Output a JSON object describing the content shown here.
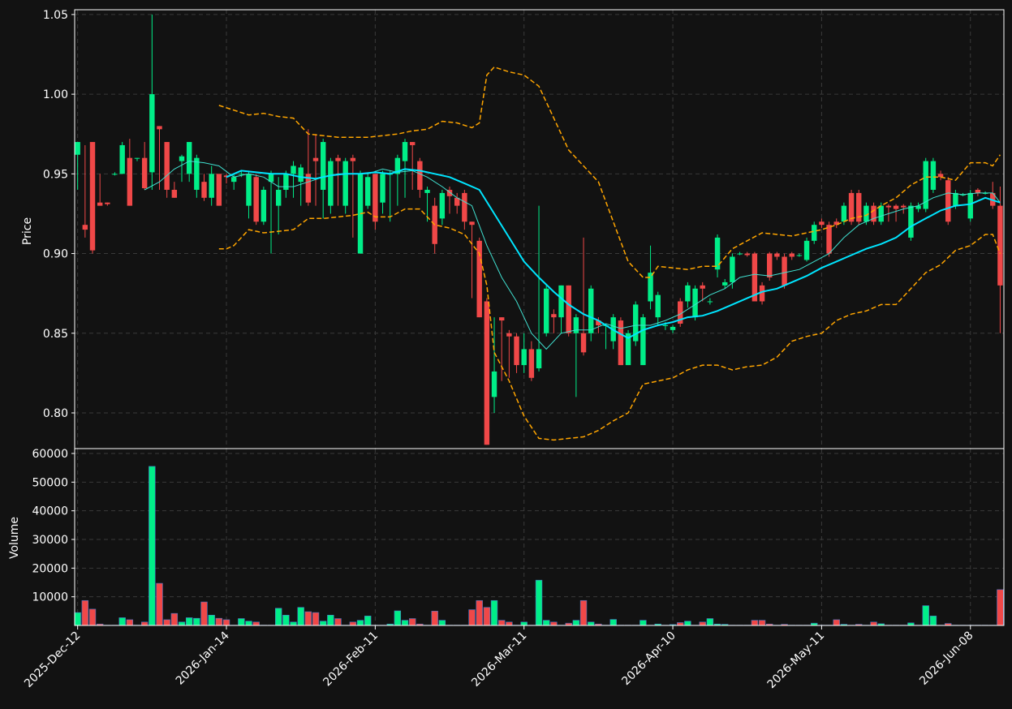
{
  "chart_data": [
    {
      "type": "candlestick",
      "ylabel": "Price",
      "up_color": "#00ee88",
      "down_color": "#f04848",
      "grid": true,
      "xlim": [
        -0.4,
        124.5
      ],
      "ylim": [
        0.7776,
        1.053
      ],
      "yticks": [
        {
          "value": 0.8,
          "label": "0.80"
        },
        0.85,
        {
          "value": 0.9,
          "label": "0.90"
        },
        0.95,
        {
          "value": 1,
          "label": "1.00"
        },
        1.05
      ],
      "open": [
        0.962,
        0.918,
        0.97,
        0.932,
        0.932,
        0.95,
        0.95,
        0.96,
        0.96,
        0.96,
        0.951,
        0.98,
        0.97,
        0.94,
        0.958,
        0.95,
        0.94,
        0.945,
        0.935,
        0.95,
        0.949,
        0.945,
        0.95,
        0.93,
        0.948,
        0.92,
        0.945,
        0.93,
        0.94,
        0.95,
        0.945,
        0.95,
        0.96,
        0.94,
        0.93,
        0.96,
        0.93,
        0.96,
        0.9,
        0.93,
        0.95,
        0.932,
        0.95,
        0.95,
        0.958,
        0.97,
        0.958,
        0.938,
        0.93,
        0.922,
        0.94,
        0.935,
        0.938,
        0.92,
        0.908,
        0.87,
        0.81,
        0.86,
        0.85,
        0.848,
        0.83,
        0.84,
        0.828,
        0.85,
        0.862,
        0.86,
        0.88,
        0.85,
        0.85,
        0.85,
        0.858,
        0.855,
        0.845,
        0.858,
        0.83,
        0.845,
        0.83,
        0.87,
        0.86,
        0.855,
        0.852,
        0.87,
        0.87,
        0.86,
        0.88,
        0.87,
        0.89,
        0.88,
        0.882,
        0.9,
        0.9,
        0.9,
        0.88,
        0.9,
        0.9,
        0.898,
        0.9,
        0.899,
        0.896,
        0.908,
        0.92,
        0.918,
        0.92,
        0.92,
        0.938,
        0.938,
        0.92,
        0.93,
        0.92,
        0.93,
        0.93,
        0.93,
        0.91,
        0.928,
        0.928,
        0.94,
        0.95,
        0.946,
        0.93,
        0.937,
        0.922,
        0.94,
        0.938,
        0.938,
        0.93
      ],
      "close": [
        0.97,
        0.915,
        0.902,
        0.93,
        0.931,
        0.95,
        0.968,
        0.93,
        0.96,
        0.941,
        1.0,
        0.978,
        0.94,
        0.935,
        0.961,
        0.97,
        0.96,
        0.935,
        0.95,
        0.93,
        0.948,
        0.948,
        0.95,
        0.95,
        0.92,
        0.94,
        0.95,
        0.94,
        0.95,
        0.955,
        0.954,
        0.932,
        0.958,
        0.97,
        0.958,
        0.958,
        0.958,
        0.958,
        0.95,
        0.948,
        0.92,
        0.95,
        0.95,
        0.96,
        0.97,
        0.968,
        0.94,
        0.94,
        0.906,
        0.938,
        0.936,
        0.93,
        0.92,
        0.918,
        0.86,
        0.78,
        0.826,
        0.858,
        0.848,
        0.83,
        0.84,
        0.822,
        0.84,
        0.878,
        0.86,
        0.88,
        0.85,
        0.86,
        0.838,
        0.878,
        0.855,
        0.855,
        0.86,
        0.83,
        0.85,
        0.868,
        0.86,
        0.888,
        0.874,
        0.855,
        0.854,
        0.856,
        0.88,
        0.878,
        0.878,
        0.87,
        0.91,
        0.882,
        0.898,
        0.9,
        0.899,
        0.87,
        0.87,
        0.885,
        0.898,
        0.88,
        0.898,
        0.899,
        0.908,
        0.918,
        0.918,
        0.9,
        0.918,
        0.93,
        0.92,
        0.92,
        0.93,
        0.92,
        0.93,
        0.929,
        0.928,
        0.929,
        0.93,
        0.93,
        0.958,
        0.958,
        0.948,
        0.92,
        0.938,
        0.937,
        0.938,
        0.938,
        0.938,
        0.93,
        0.88
      ],
      "high": [
        0.97,
        0.968,
        0.97,
        0.95,
        0.932,
        0.951,
        0.97,
        0.972,
        0.96,
        0.97,
        1.05,
        0.98,
        0.97,
        0.945,
        0.962,
        0.97,
        0.962,
        0.95,
        0.955,
        0.95,
        0.95,
        0.95,
        0.952,
        0.952,
        0.95,
        0.942,
        0.952,
        0.948,
        0.952,
        0.958,
        0.956,
        0.978,
        0.975,
        0.972,
        0.96,
        0.962,
        0.96,
        0.962,
        0.952,
        0.95,
        0.95,
        0.952,
        0.952,
        0.962,
        0.972,
        0.97,
        0.96,
        0.942,
        0.935,
        0.94,
        0.942,
        0.938,
        0.94,
        0.92,
        0.91,
        0.872,
        0.86,
        0.86,
        0.852,
        0.85,
        0.85,
        0.845,
        0.93,
        0.88,
        0.865,
        0.88,
        0.88,
        0.862,
        0.91,
        0.88,
        0.86,
        0.856,
        0.862,
        0.86,
        0.852,
        0.87,
        0.862,
        0.905,
        0.876,
        0.857,
        0.855,
        0.872,
        0.882,
        0.88,
        0.882,
        0.872,
        0.912,
        0.884,
        0.9,
        0.901,
        0.901,
        0.901,
        0.882,
        0.901,
        0.901,
        0.9,
        0.901,
        0.9,
        0.91,
        0.92,
        0.922,
        0.92,
        0.922,
        0.932,
        0.94,
        0.94,
        0.932,
        0.932,
        0.932,
        0.931,
        0.931,
        0.931,
        0.932,
        0.932,
        0.96,
        0.96,
        0.952,
        0.948,
        0.94,
        0.938,
        0.94,
        0.941,
        0.939,
        0.945,
        0.942
      ],
      "low": [
        0.94,
        0.91,
        0.9,
        0.93,
        0.93,
        0.949,
        0.95,
        0.93,
        0.958,
        0.94,
        0.94,
        0.94,
        0.935,
        0.935,
        0.945,
        0.945,
        0.935,
        0.933,
        0.93,
        0.93,
        0.944,
        0.94,
        0.948,
        0.922,
        0.918,
        0.918,
        0.9,
        0.912,
        0.935,
        0.935,
        0.93,
        0.93,
        0.93,
        0.922,
        0.925,
        0.93,
        0.925,
        0.91,
        0.9,
        0.928,
        0.915,
        0.925,
        0.92,
        0.93,
        0.935,
        0.94,
        0.935,
        0.92,
        0.9,
        0.918,
        0.925,
        0.925,
        0.915,
        0.872,
        0.86,
        0.78,
        0.8,
        0.82,
        0.822,
        0.825,
        0.825,
        0.82,
        0.826,
        0.848,
        0.85,
        0.85,
        0.848,
        0.81,
        0.836,
        0.845,
        0.85,
        0.84,
        0.84,
        0.83,
        0.83,
        0.842,
        0.83,
        0.865,
        0.855,
        0.852,
        0.85,
        0.854,
        0.866,
        0.858,
        0.87,
        0.868,
        0.885,
        0.878,
        0.878,
        0.899,
        0.898,
        0.87,
        0.868,
        0.883,
        0.896,
        0.878,
        0.896,
        0.898,
        0.895,
        0.906,
        0.916,
        0.898,
        0.916,
        0.918,
        0.918,
        0.918,
        0.918,
        0.918,
        0.918,
        0.92,
        0.92,
        0.925,
        0.908,
        0.926,
        0.926,
        0.938,
        0.946,
        0.918,
        0.928,
        0.936,
        0.92,
        0.936,
        0.937,
        0.928,
        0.85
      ],
      "lines": [
        {
          "color": "#40e0d0",
          "width": 1,
          "dashed": false,
          "x": [
            9,
            11,
            13,
            15,
            17,
            19,
            21,
            23,
            25,
            27,
            29,
            31,
            33,
            35,
            37,
            39,
            41,
            43,
            45,
            47,
            49,
            51,
            53,
            55,
            57,
            59,
            61,
            63,
            65,
            67,
            69,
            71,
            73,
            75,
            77,
            79,
            81,
            83,
            85,
            87,
            89,
            91,
            93,
            95,
            97,
            99,
            101,
            103,
            105,
            107,
            109,
            111,
            113,
            115,
            117,
            119,
            121,
            123,
            124
          ],
          "values": [
            0.94,
            0.945,
            0.953,
            0.958,
            0.957,
            0.955,
            0.948,
            0.95,
            0.948,
            0.942,
            0.942,
            0.945,
            0.948,
            0.95,
            0.95,
            0.95,
            0.953,
            0.951,
            0.952,
            0.948,
            0.942,
            0.935,
            0.93,
            0.905,
            0.885,
            0.87,
            0.85,
            0.84,
            0.85,
            0.852,
            0.852,
            0.856,
            0.853,
            0.855,
            0.855,
            0.858,
            0.862,
            0.868,
            0.874,
            0.878,
            0.885,
            0.887,
            0.886,
            0.888,
            0.89,
            0.895,
            0.9,
            0.91,
            0.918,
            0.922,
            0.925,
            0.928,
            0.93,
            0.935,
            0.938,
            0.937,
            0.938,
            0.938,
            0.932
          ]
        },
        {
          "color": "#00e5ff",
          "width": 2,
          "dashed": false,
          "x": [
            20,
            22,
            24,
            26,
            28,
            30,
            32,
            34,
            36,
            38,
            40,
            42,
            44,
            46,
            48,
            50,
            52,
            54,
            56,
            58,
            60,
            62,
            64,
            66,
            68,
            70,
            72,
            74,
            76,
            78,
            80,
            82,
            84,
            86,
            88,
            90,
            92,
            94,
            96,
            98,
            100,
            102,
            104,
            106,
            108,
            110,
            112,
            114,
            116,
            118,
            120,
            122,
            124
          ],
          "values": [
            0.948,
            0.952,
            0.951,
            0.95,
            0.95,
            0.948,
            0.947,
            0.949,
            0.95,
            0.95,
            0.951,
            0.95,
            0.953,
            0.952,
            0.95,
            0.948,
            0.944,
            0.94,
            0.925,
            0.91,
            0.895,
            0.885,
            0.876,
            0.868,
            0.862,
            0.858,
            0.852,
            0.847,
            0.852,
            0.855,
            0.857,
            0.86,
            0.861,
            0.864,
            0.868,
            0.872,
            0.876,
            0.878,
            0.882,
            0.886,
            0.891,
            0.895,
            0.899,
            0.903,
            0.906,
            0.91,
            0.917,
            0.922,
            0.927,
            0.93,
            0.931,
            0.935,
            0.932
          ]
        },
        {
          "color": "#ffa500",
          "width": 1.5,
          "dashed": true,
          "x": [
            19,
            21,
            23,
            25,
            27,
            29,
            31,
            33,
            35,
            37,
            39,
            41,
            43,
            45,
            47,
            49,
            51,
            53,
            54,
            55,
            56,
            58,
            60,
            62,
            64,
            66,
            68,
            70,
            72,
            74,
            76,
            77,
            78,
            80,
            82,
            84,
            86,
            88,
            90,
            92,
            94,
            96,
            98,
            100,
            102,
            104,
            106,
            108,
            110,
            112,
            114,
            116,
            118,
            120,
            122,
            123,
            124
          ],
          "values": [
            0.993,
            0.99,
            0.987,
            0.988,
            0.986,
            0.985,
            0.975,
            0.974,
            0.973,
            0.973,
            0.973,
            0.974,
            0.975,
            0.977,
            0.978,
            0.983,
            0.982,
            0.979,
            0.982,
            1.012,
            1.017,
            1.014,
            1.012,
            1.005,
            0.985,
            0.965,
            0.955,
            0.945,
            0.92,
            0.895,
            0.885,
            0.885,
            0.892,
            0.891,
            0.89,
            0.892,
            0.892,
            0.903,
            0.908,
            0.913,
            0.912,
            0.911,
            0.913,
            0.915,
            0.918,
            0.922,
            0.924,
            0.93,
            0.935,
            0.943,
            0.948,
            0.948,
            0.946,
            0.957,
            0.957,
            0.955,
            0.962
          ]
        },
        {
          "color": "#ffa500",
          "width": 1.5,
          "dashed": true,
          "x": [
            19,
            20,
            21,
            23,
            25,
            27,
            29,
            31,
            33,
            35,
            37,
            39,
            40,
            42,
            44,
            46,
            48,
            50,
            52,
            54,
            55,
            56,
            58,
            60,
            62,
            64,
            66,
            68,
            70,
            72,
            74,
            76,
            78,
            80,
            82,
            84,
            86,
            88,
            90,
            92,
            94,
            96,
            98,
            100,
            102,
            104,
            106,
            108,
            110,
            112,
            114,
            116,
            118,
            120,
            122,
            123,
            124
          ],
          "values": [
            0.903,
            0.903,
            0.905,
            0.915,
            0.913,
            0.914,
            0.915,
            0.922,
            0.922,
            0.923,
            0.924,
            0.926,
            0.923,
            0.923,
            0.928,
            0.928,
            0.918,
            0.916,
            0.912,
            0.9,
            0.88,
            0.838,
            0.82,
            0.798,
            0.784,
            0.783,
            0.784,
            0.785,
            0.789,
            0.795,
            0.8,
            0.818,
            0.82,
            0.822,
            0.827,
            0.83,
            0.83,
            0.827,
            0.829,
            0.83,
            0.835,
            0.845,
            0.848,
            0.85,
            0.858,
            0.862,
            0.864,
            0.868,
            0.868,
            0.878,
            0.888,
            0.893,
            0.902,
            0.905,
            0.912,
            0.912,
            0.9
          ]
        }
      ]
    },
    {
      "type": "bar",
      "ylabel": "Volume",
      "up_color": "#00ee88",
      "down_color": "#f04848",
      "grid": true,
      "xlim": [
        -0.4,
        124.5
      ],
      "ylim": [
        0,
        61700
      ],
      "yticks": [
        10000,
        20000,
        30000,
        40000,
        50000,
        60000
      ],
      "xticks": [
        {
          "value": 0,
          "label": "2025-Dec-12"
        },
        {
          "value": 20,
          "label": "2026-Jan-14"
        },
        {
          "value": 40,
          "label": "2026-Feb-11"
        },
        {
          "value": 60,
          "label": "2026-Mar-11"
        },
        {
          "value": 80,
          "label": "2026-Apr-10"
        },
        {
          "value": 100,
          "label": "2026-May-11"
        },
        {
          "value": 120,
          "label": "2026-Jun-08"
        }
      ],
      "values": [
        4500,
        8700,
        5700,
        500,
        100,
        100,
        2700,
        2000,
        100,
        1200,
        55500,
        14700,
        2000,
        4200,
        1200,
        2700,
        2500,
        8200,
        3600,
        2500,
        2000,
        100,
        2400,
        1500,
        1200,
        100,
        100,
        6000,
        3600,
        1200,
        6300,
        4800,
        4500,
        1500,
        3600,
        2400,
        100,
        1200,
        1800,
        3300,
        100,
        100,
        500,
        5100,
        1800,
        2400,
        500,
        100,
        5000,
        1800,
        100,
        100,
        100,
        5500,
        8700,
        6300,
        8700,
        1800,
        1200,
        100,
        1200,
        100,
        15800,
        1800,
        1200,
        100,
        800,
        1800,
        8700,
        1200,
        500,
        100,
        2100,
        100,
        100,
        100,
        1800,
        100,
        500,
        100,
        300,
        1000,
        1500,
        100,
        1200,
        2400,
        500,
        400,
        100,
        100,
        100,
        1800,
        1800,
        500,
        100,
        400,
        100,
        100,
        100,
        800,
        100,
        100,
        2000,
        400,
        100,
        400,
        100,
        1200,
        600,
        100,
        100,
        100,
        900,
        100,
        6900,
        3300,
        100,
        700,
        100,
        100,
        100,
        100,
        100,
        100,
        12500
      ]
    }
  ]
}
